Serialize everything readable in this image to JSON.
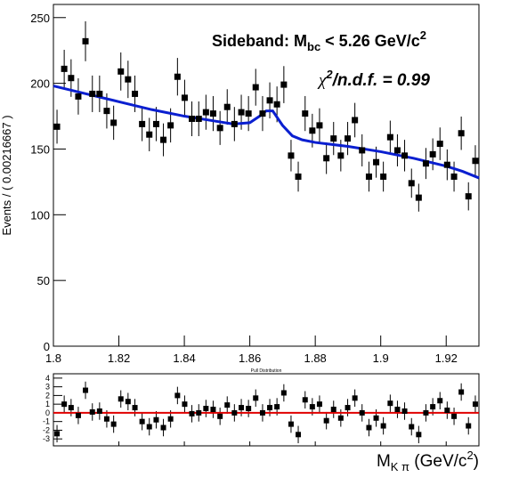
{
  "chart_data": [
    {
      "type": "scatter",
      "ylabel": "Events / ( 0.00216667 )",
      "annotation": {
        "text": "Sideband: M",
        "sub": "bc",
        "rest": " < 5.26 GeV/c",
        "sup": "2"
      },
      "chi2": {
        "symbol": "χ",
        "sup": "2",
        "rest": "/n.d.f. = 0.99"
      },
      "xlim": [
        1.8,
        1.93
      ],
      "xticks": [
        1.8,
        1.82,
        1.84,
        1.86,
        1.88,
        1.9,
        1.92
      ],
      "ylim": [
        0,
        260
      ],
      "yticks": [
        0,
        50,
        100,
        150,
        200,
        250
      ],
      "points": {
        "color": "#000000",
        "x": [
          1.8011,
          1.8033,
          1.8054,
          1.8076,
          1.8098,
          1.8119,
          1.8141,
          1.8163,
          1.8184,
          1.8206,
          1.8228,
          1.8249,
          1.8271,
          1.8293,
          1.8314,
          1.8336,
          1.8358,
          1.8379,
          1.8401,
          1.8423,
          1.8444,
          1.8466,
          1.8488,
          1.8509,
          1.8531,
          1.8553,
          1.8574,
          1.8596,
          1.8618,
          1.8639,
          1.8661,
          1.8683,
          1.8704,
          1.8726,
          1.8748,
          1.8769,
          1.8791,
          1.8813,
          1.8834,
          1.8856,
          1.8878,
          1.8899,
          1.8921,
          1.8943,
          1.8964,
          1.8986,
          1.9008,
          1.9029,
          1.9051,
          1.9073,
          1.9094,
          1.9116,
          1.9138,
          1.9159,
          1.9181,
          1.9203,
          1.9224,
          1.9246,
          1.9268,
          1.9289
        ],
        "values": [
          167,
          211,
          204,
          190,
          232,
          192,
          192,
          179,
          170,
          209,
          203,
          192,
          169,
          161,
          169,
          157,
          168,
          205,
          189,
          173,
          173,
          178,
          177,
          166,
          182,
          169,
          178,
          177,
          197,
          177,
          187,
          184,
          199,
          145,
          129,
          177,
          164,
          168,
          143,
          158,
          145,
          158,
          172,
          149,
          129,
          140,
          129,
          159,
          149,
          145,
          124,
          113,
          139,
          146,
          154,
          138,
          129,
          162,
          114,
          141
        ],
        "errors": [
          12.9,
          14.5,
          14.3,
          13.8,
          15.2,
          13.9,
          13.9,
          13.4,
          13.0,
          14.5,
          14.2,
          13.9,
          13.0,
          12.7,
          13.0,
          12.5,
          13.0,
          14.3,
          13.7,
          13.2,
          13.2,
          13.3,
          13.3,
          12.9,
          13.5,
          13.0,
          13.3,
          13.3,
          14.0,
          13.3,
          13.7,
          13.6,
          14.1,
          12.0,
          11.4,
          13.3,
          12.8,
          13.0,
          12.0,
          12.6,
          12.0,
          12.6,
          13.1,
          12.2,
          11.4,
          11.8,
          11.4,
          12.6,
          12.2,
          12.0,
          11.1,
          10.6,
          11.8,
          12.1,
          12.4,
          11.7,
          11.4,
          12.7,
          10.7,
          11.9
        ]
      },
      "fit": {
        "color": "#0a1fd0",
        "x": [
          1.8,
          1.81,
          1.82,
          1.83,
          1.84,
          1.85,
          1.855,
          1.86,
          1.863,
          1.865,
          1.867,
          1.87,
          1.873,
          1.876,
          1.88,
          1.89,
          1.9,
          1.91,
          1.92,
          1.925,
          1.93
        ],
        "values": [
          198,
          192,
          186,
          180,
          175,
          171,
          169,
          170,
          175,
          179,
          179,
          168,
          160,
          157,
          155,
          152,
          148,
          143,
          137,
          133,
          128
        ]
      }
    },
    {
      "type": "pull",
      "title": "Pull Distribution",
      "xlabel": {
        "text": "M",
        "sub": "K π",
        "unit": " (GeV/c",
        "sup": "2",
        "end": ")"
      },
      "ylim": [
        -3.8,
        4.5
      ],
      "yticks": [
        -3,
        -2,
        -1,
        0,
        1,
        2,
        3,
        4
      ],
      "values": [
        -2.4,
        1.0,
        0.6,
        -0.3,
        2.6,
        0.1,
        0.2,
        -0.7,
        -1.3,
        1.6,
        1.3,
        0.6,
        -1.0,
        -1.6,
        -0.8,
        -1.7,
        -0.7,
        2.0,
        1.0,
        -0.1,
        0,
        0.5,
        0.4,
        -0.4,
        0.9,
        0,
        0.6,
        0.5,
        1.7,
        0,
        0.6,
        0.7,
        2.3,
        -1.3,
        -2.5,
        1.5,
        0.7,
        1.0,
        -0.9,
        0.4,
        -0.6,
        0.6,
        1.7,
        0,
        -1.7,
        -0.6,
        -1.5,
        1.1,
        0.4,
        0.2,
        -1.6,
        -2.5,
        0,
        0.7,
        1.4,
        0.3,
        -0.4,
        2.4,
        -1.5,
        1.0
      ],
      "error": 1,
      "color": "#000000",
      "reference": 0,
      "reference_color": "#e00000"
    }
  ]
}
